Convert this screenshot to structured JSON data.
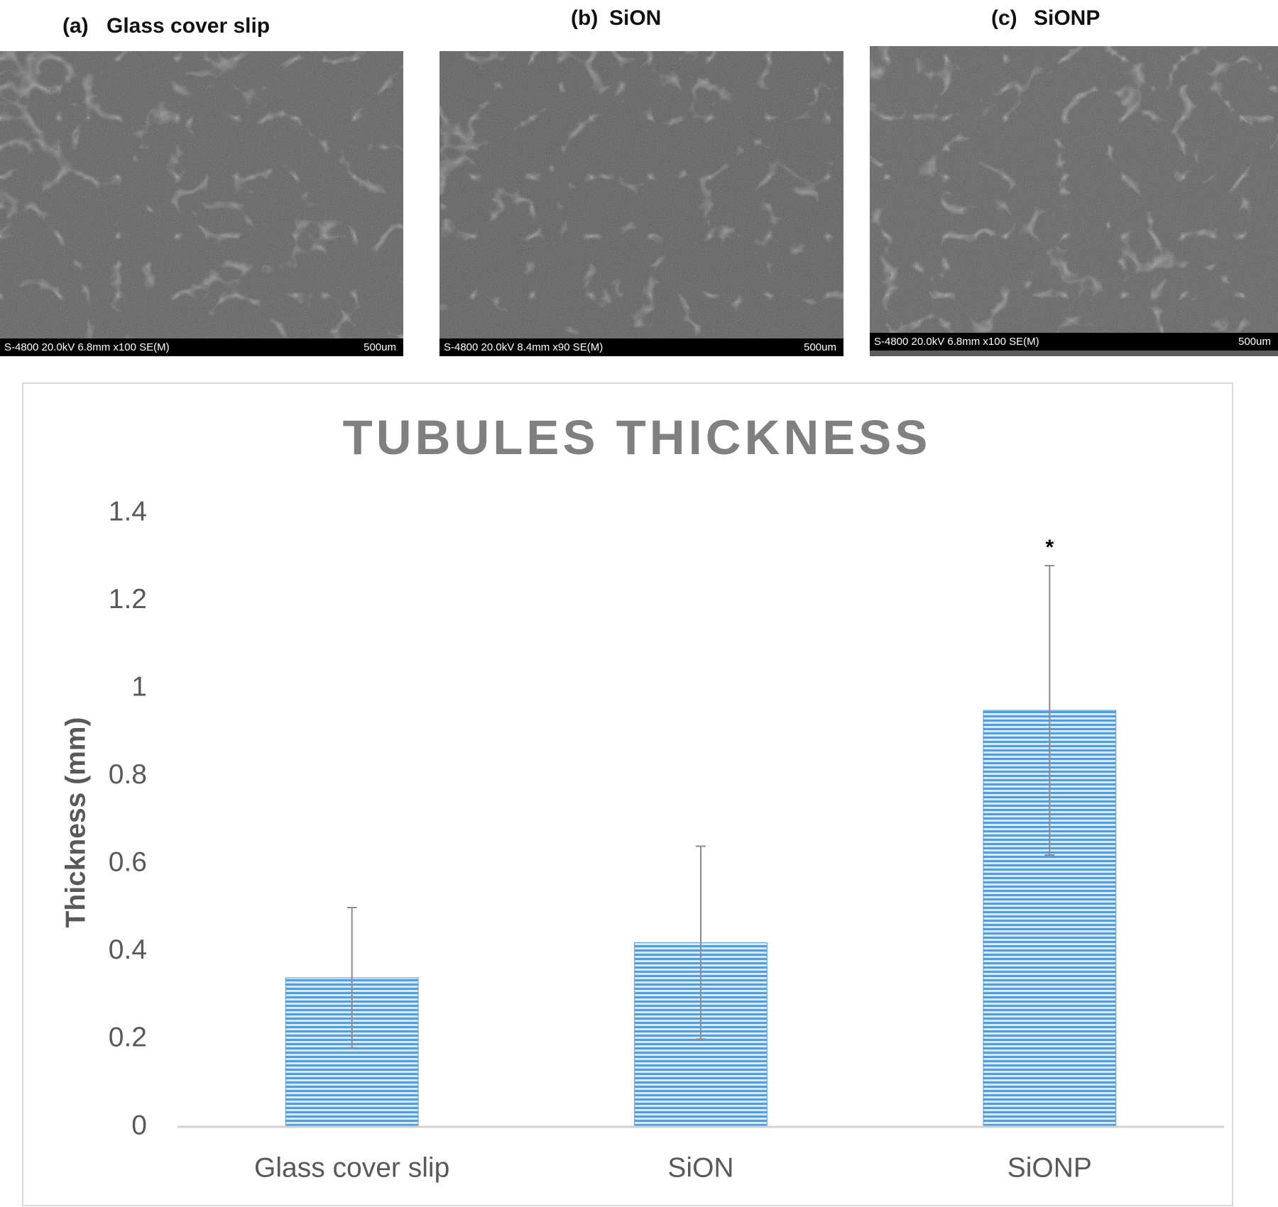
{
  "panels": [
    {
      "label": "(a)",
      "title": "Glass cover slip",
      "info": "S-4800 20.0kV 6.8mm x100 SE(M)",
      "scale": "500um"
    },
    {
      "label": "(b)",
      "title": "SiON",
      "info": "S-4800 20.0kV 8.4mm x90 SE(M)",
      "scale": "500um"
    },
    {
      "label": "(c)",
      "title": "SiONP",
      "info": "S-4800 20.0kV 6.8mm x100 SE(M)",
      "scale": "500um"
    }
  ],
  "chart_data": {
    "type": "bar",
    "title": "TUBULES THICKNESS",
    "y_label": "Thickness (mm)",
    "categories": [
      "Glass cover slip",
      "SiON",
      "SiONP"
    ],
    "values": [
      0.34,
      0.42,
      0.95
    ],
    "errors": [
      0.16,
      0.22,
      0.33
    ],
    "color": "#5b9bd5",
    "annotations": [
      {
        "text": "*",
        "x": "SiONP"
      }
    ],
    "ylim": [
      0,
      1.4
    ],
    "yticks": [
      0,
      0.2,
      0.4,
      0.6,
      0.8,
      1,
      1.2,
      1.4
    ],
    "grid": false
  }
}
